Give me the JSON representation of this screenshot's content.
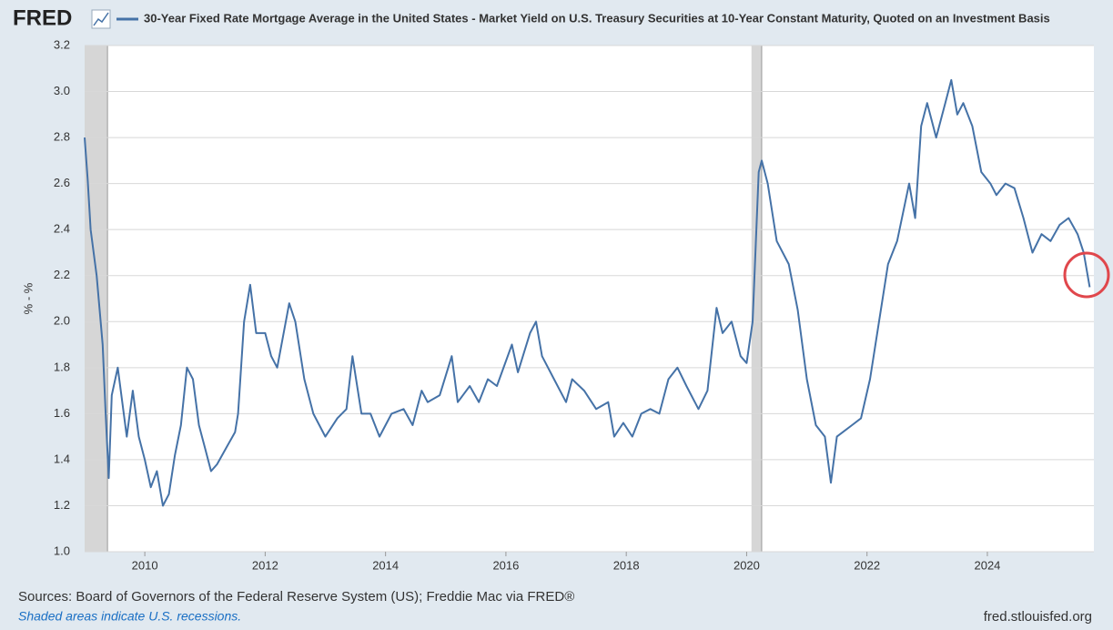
{
  "chart_data": {
    "type": "line",
    "logo": "FRED",
    "y_label": "% - %",
    "source": "Sources: Board of Governors of the Federal Reserve System (US); Freddie Mac via FRED®",
    "note": "Shaded areas indicate U.S. recessions.",
    "credit": "fred.stlouisfed.org",
    "x": [
      2009.0,
      2009.05,
      2009.1,
      2009.2,
      2009.3,
      2009.35,
      2009.4,
      2009.45,
      2009.55,
      2009.7,
      2009.8,
      2009.9,
      2010.0,
      2010.1,
      2010.2,
      2010.3,
      2010.4,
      2010.5,
      2010.6,
      2010.7,
      2010.8,
      2010.9,
      2011.0,
      2011.1,
      2011.2,
      2011.35,
      2011.5,
      2011.55,
      2011.65,
      2011.75,
      2011.85,
      2012.0,
      2012.1,
      2012.2,
      2012.4,
      2012.5,
      2012.65,
      2012.8,
      2013.0,
      2013.2,
      2013.35,
      2013.45,
      2013.6,
      2013.75,
      2013.9,
      2014.1,
      2014.3,
      2014.45,
      2014.6,
      2014.7,
      2014.9,
      2015.1,
      2015.2,
      2015.4,
      2015.55,
      2015.7,
      2015.85,
      2016.1,
      2016.2,
      2016.4,
      2016.5,
      2016.6,
      2016.8,
      2017.0,
      2017.1,
      2017.3,
      2017.5,
      2017.7,
      2017.8,
      2017.95,
      2018.1,
      2018.25,
      2018.4,
      2018.55,
      2018.7,
      2018.85,
      2019.0,
      2019.2,
      2019.35,
      2019.5,
      2019.6,
      2019.75,
      2019.9,
      2020.0,
      2020.1,
      2020.2,
      2020.25,
      2020.35,
      2020.5,
      2020.7,
      2020.85,
      2021.0,
      2021.15,
      2021.3,
      2021.4,
      2021.5,
      2021.6,
      2021.75,
      2021.9,
      2022.05,
      2022.2,
      2022.35,
      2022.5,
      2022.7,
      2022.8,
      2022.9,
      2023.0,
      2023.15,
      2023.3,
      2023.4,
      2023.5,
      2023.6,
      2023.75,
      2023.9,
      2024.05,
      2024.15,
      2024.3,
      2024.45,
      2024.6,
      2024.75,
      2024.9,
      2025.05,
      2025.2,
      2025.35,
      2025.5,
      2025.6,
      2025.7
    ],
    "series": [
      {
        "name": "30-Year Fixed Rate Mortgage Average in the United States - Market Yield on U.S. Treasury Securities at 10-Year Constant Maturity, Quoted on an Investment Basis",
        "color": "#4572a7",
        "values": [
          2.8,
          2.62,
          2.4,
          2.2,
          1.9,
          1.6,
          1.32,
          1.68,
          1.8,
          1.5,
          1.7,
          1.5,
          1.4,
          1.28,
          1.35,
          1.2,
          1.25,
          1.42,
          1.55,
          1.8,
          1.75,
          1.55,
          1.45,
          1.35,
          1.38,
          1.45,
          1.52,
          1.6,
          2.0,
          2.16,
          1.95,
          1.95,
          1.85,
          1.8,
          2.08,
          2.0,
          1.75,
          1.6,
          1.5,
          1.58,
          1.62,
          1.85,
          1.6,
          1.6,
          1.5,
          1.6,
          1.62,
          1.55,
          1.7,
          1.65,
          1.68,
          1.85,
          1.65,
          1.72,
          1.65,
          1.75,
          1.72,
          1.9,
          1.78,
          1.95,
          2.0,
          1.85,
          1.75,
          1.65,
          1.75,
          1.7,
          1.62,
          1.65,
          1.5,
          1.56,
          1.5,
          1.6,
          1.62,
          1.6,
          1.75,
          1.8,
          1.72,
          1.62,
          1.7,
          2.06,
          1.95,
          2.0,
          1.85,
          1.82,
          2.0,
          2.65,
          2.7,
          2.6,
          2.35,
          2.25,
          2.05,
          1.75,
          1.55,
          1.5,
          1.3,
          1.5,
          1.52,
          1.55,
          1.58,
          1.75,
          2.0,
          2.25,
          2.35,
          2.6,
          2.45,
          2.85,
          2.95,
          2.8,
          2.95,
          3.05,
          2.9,
          2.95,
          2.85,
          2.65,
          2.6,
          2.55,
          2.6,
          2.58,
          2.45,
          2.3,
          2.38,
          2.35,
          2.42,
          2.45,
          2.38,
          2.3,
          2.15
        ]
      }
    ],
    "recessions": [
      [
        2009.0,
        2009.38
      ],
      [
        2020.08,
        2020.25
      ]
    ],
    "xlim": [
      2009.0,
      2025.77
    ],
    "xticks": [
      2010,
      2012,
      2014,
      2016,
      2018,
      2020,
      2022,
      2024
    ],
    "ylim": [
      1.0,
      3.2
    ],
    "yticks": [
      {
        "value": 1.0,
        "label": "1.0"
      },
      1.2,
      1.4,
      1.6,
      1.8,
      {
        "value": 2.0,
        "label": "2.0"
      },
      2.2,
      2.4,
      2.6,
      2.8,
      {
        "value": 3.0,
        "label": "3.0"
      },
      3.2
    ],
    "grid": true
  }
}
